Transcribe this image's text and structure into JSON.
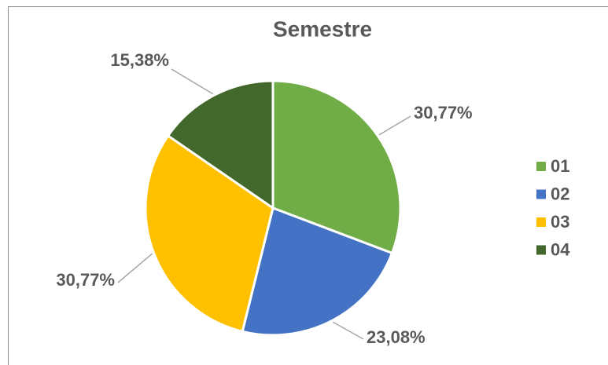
{
  "chart_data": {
    "type": "pie",
    "title": "Semestre",
    "categories": [
      "01",
      "02",
      "03",
      "04"
    ],
    "values": [
      30.77,
      23.08,
      30.77,
      15.38
    ],
    "value_labels": [
      "30,77%",
      "23,08%",
      "30,77%",
      "15,38%"
    ],
    "colors": [
      "#70ad47",
      "#4472c4",
      "#ffc000",
      "#43682b"
    ],
    "legend": "right"
  }
}
